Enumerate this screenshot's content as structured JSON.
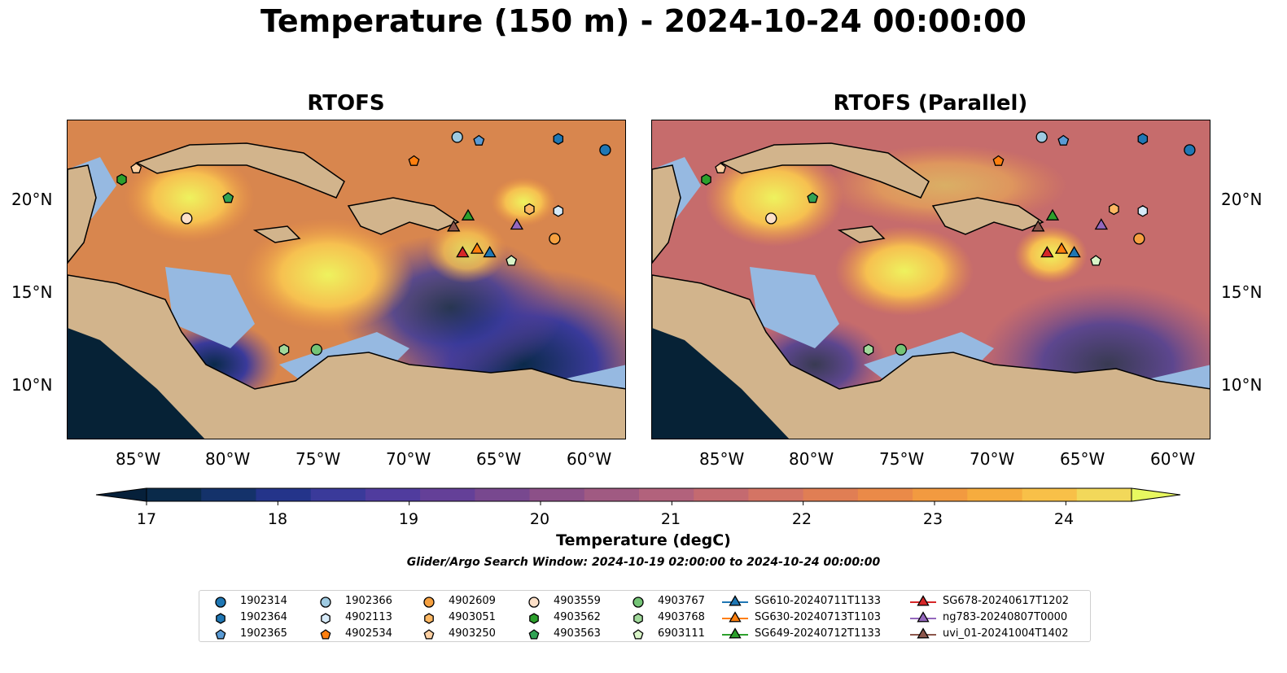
{
  "title": "Temperature (150 m) - 2024-10-24 00:00:00",
  "panels": [
    {
      "title": "RTOFS"
    },
    {
      "title": "RTOFS (Parallel)"
    }
  ],
  "axes": {
    "lon_ticks": [
      "85°W",
      "80°W",
      "75°W",
      "70°W",
      "65°W",
      "60°W"
    ],
    "lat_ticks": [
      "20°N",
      "15°N",
      "10°N"
    ],
    "lon_range": [
      -89,
      -58
    ],
    "lat_range": [
      7,
      24.3
    ]
  },
  "colorbar": {
    "label": "Temperature (degC)",
    "ticks": [
      "17",
      "18",
      "19",
      "20",
      "21",
      "22",
      "23",
      "24"
    ],
    "range": [
      17,
      24.5
    ],
    "colors": [
      "#0a2a4a",
      "#14326a",
      "#24348a",
      "#3a3a9a",
      "#503c9e",
      "#644098",
      "#78488f",
      "#8c5088",
      "#a05a82",
      "#b2627c",
      "#c46a70",
      "#d47464",
      "#e07e54",
      "#ea8a48",
      "#f29a40",
      "#f6ac3e",
      "#f8c048",
      "#f2d85a"
    ],
    "over_color": "#e8f860",
    "under_color": "#06203a"
  },
  "window_note": "Glider/Argo Search Window: 2024-10-19 02:00:00 to 2024-10-24 00:00:00",
  "colors": {
    "land": "#d2b48c",
    "shelf": "#96b9e1",
    "deep_dark": "#062236"
  },
  "platforms": [
    {
      "id": "1902314",
      "shape": "circle",
      "color": "#1f77b4",
      "lon": -59.2,
      "lat": 22.7
    },
    {
      "id": "1902364",
      "shape": "hexagon",
      "color": "#1f77b4",
      "lon": -61.8,
      "lat": 23.3
    },
    {
      "id": "1902365",
      "shape": "pentagon",
      "color": "#5a9bd5",
      "lon": -66.2,
      "lat": 23.2
    },
    {
      "id": "1902366",
      "shape": "circle",
      "color": "#9ecae1",
      "lon": -67.4,
      "lat": 23.4
    },
    {
      "id": "4902113",
      "shape": "hexagon",
      "color": "#d6eaf8",
      "lon": -61.8,
      "lat": 19.4
    },
    {
      "id": "4902534",
      "shape": "pentagon",
      "color": "#ff7f0e",
      "lon": -69.8,
      "lat": 22.1
    },
    {
      "id": "4902609",
      "shape": "circle",
      "color": "#f5a040",
      "lon": -62.0,
      "lat": 17.9
    },
    {
      "id": "4903051",
      "shape": "hexagon",
      "color": "#fdb863",
      "lon": -63.4,
      "lat": 19.5
    },
    {
      "id": "4903250",
      "shape": "pentagon",
      "color": "#fdd0a2",
      "lon": -85.2,
      "lat": 21.7
    },
    {
      "id": "4903559",
      "shape": "circle",
      "color": "#fde0c8",
      "lon": -82.4,
      "lat": 19.0
    },
    {
      "id": "4903562",
      "shape": "hexagon",
      "color": "#2ca02c",
      "lon": -86.0,
      "lat": 21.1
    },
    {
      "id": "4903563",
      "shape": "pentagon",
      "color": "#31a354",
      "lon": -80.1,
      "lat": 20.1
    },
    {
      "id": "4903767",
      "shape": "circle",
      "color": "#74c476",
      "lon": -75.2,
      "lat": 11.9
    },
    {
      "id": "4903768",
      "shape": "hexagon",
      "color": "#a1d99b",
      "lon": -77.0,
      "lat": 11.9
    },
    {
      "id": "6903111",
      "shape": "pentagon",
      "color": "#d9f5c8",
      "lon": -64.4,
      "lat": 16.7
    },
    {
      "id": "SG610-20240711T1133",
      "shape": "triangle",
      "color": "#1f77b4",
      "lon": -65.6,
      "lat": 17.1
    },
    {
      "id": "SG630-20240713T1103",
      "shape": "triangle",
      "color": "#ff7f0e",
      "lon": -66.3,
      "lat": 17.3
    },
    {
      "id": "SG649-20240712T1133",
      "shape": "triangle",
      "color": "#2ca02c",
      "lon": -66.8,
      "lat": 19.1
    },
    {
      "id": "SG678-20240617T1202",
      "shape": "triangle",
      "color": "#d62728",
      "lon": -67.1,
      "lat": 17.1
    },
    {
      "id": "ng783-20240807T0000",
      "shape": "triangle",
      "color": "#9467bd",
      "lon": -64.1,
      "lat": 18.6
    },
    {
      "id": "uvi_01-20241004T1402",
      "shape": "triangle",
      "color": "#8c564b",
      "lon": -67.6,
      "lat": 18.5
    }
  ]
}
